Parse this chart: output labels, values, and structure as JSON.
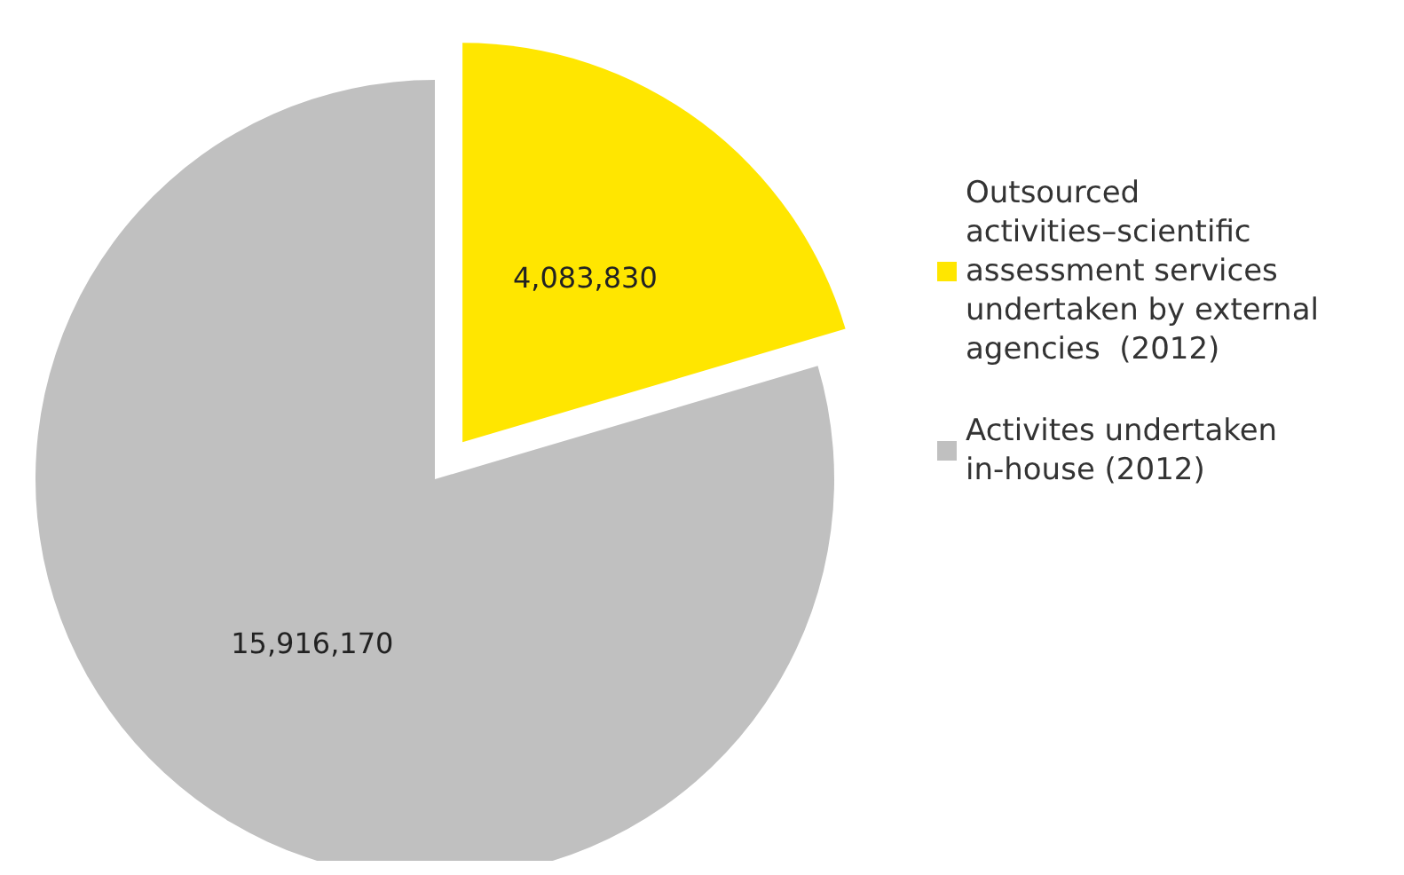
{
  "chart_data": {
    "type": "pie",
    "categories": [
      "Outsourced activities–scientific assessment services undertaken by external agencies  (2012)",
      "Activites undertaken in-house (2012)"
    ],
    "values": [
      4083830,
      15916170
    ],
    "colors": [
      "#ffe600",
      "#c0c0c0"
    ],
    "value_labels": [
      "4,083,830",
      "15,916,170"
    ],
    "legend": "right"
  }
}
